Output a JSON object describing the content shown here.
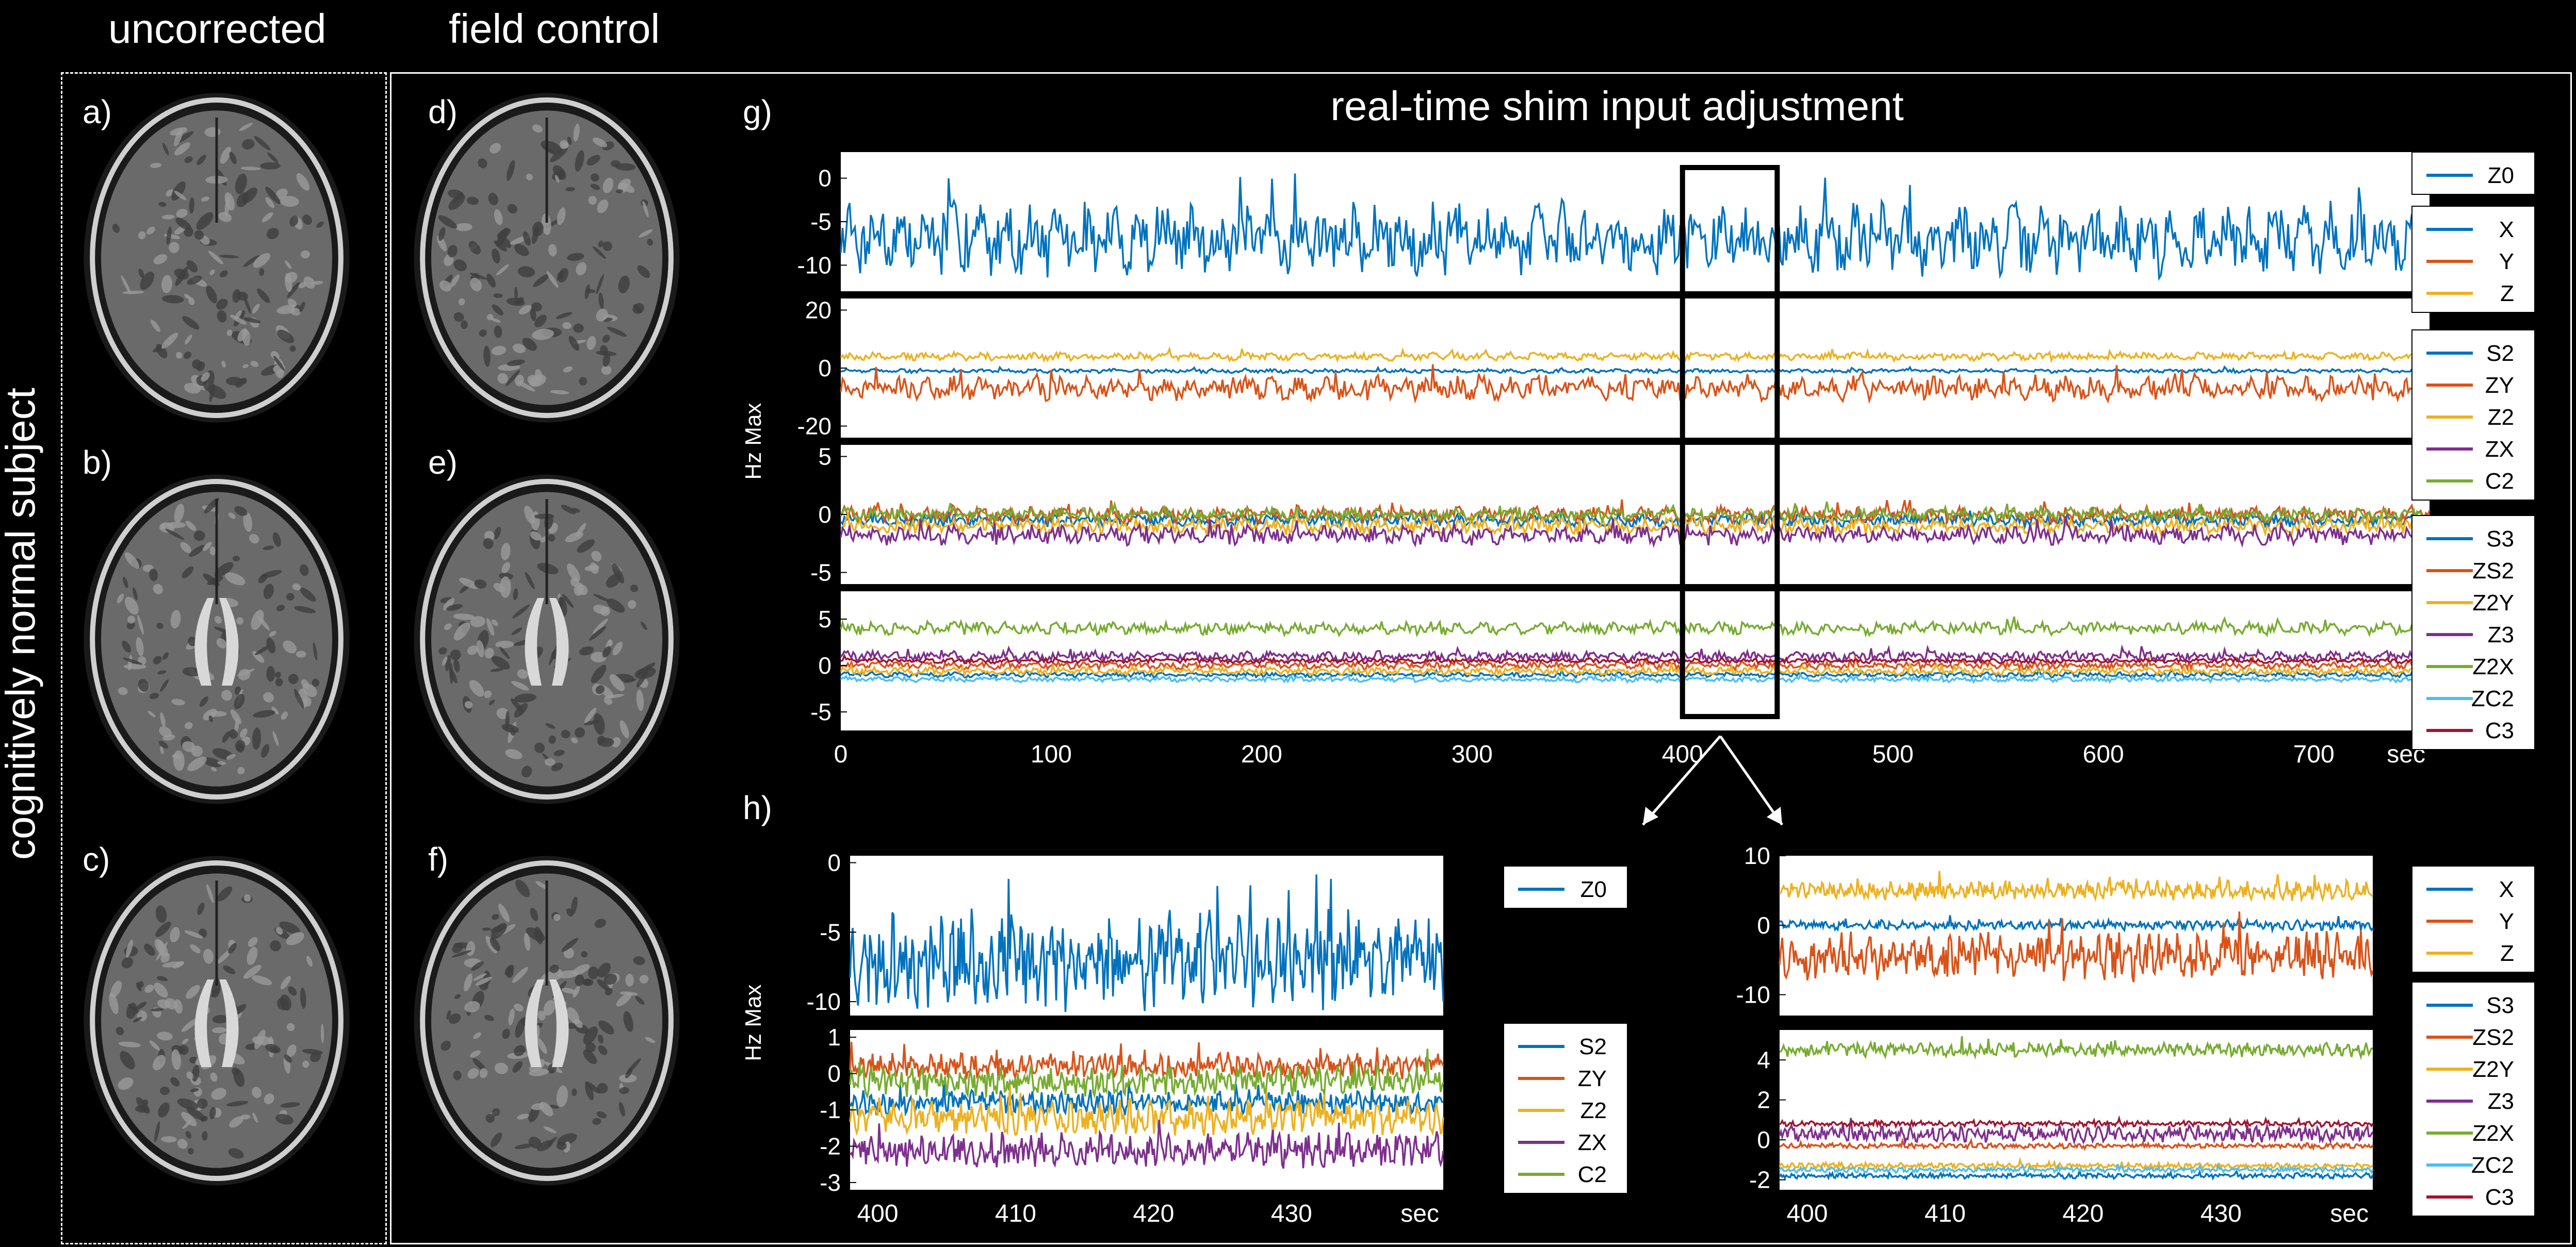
{
  "headers": {
    "uncorrected": "uncorrected",
    "field_control": "field control",
    "side_label": "cognitively normal subject"
  },
  "panels": {
    "a": "a)",
    "b": "b)",
    "c": "c)",
    "d": "d)",
    "e": "e)",
    "f": "f)",
    "g": "g)",
    "h": "h)"
  },
  "colors": {
    "blue": "#0072BD",
    "orange": "#D95319",
    "yellow": "#EDB120",
    "purple": "#7E2F8E",
    "green": "#77AC30",
    "cyan": "#4DBEEE",
    "darkred": "#A2142F"
  },
  "chart_data": [
    {
      "id": "g",
      "type": "line",
      "title": "real-time shim input adjustment",
      "ylabel": "Hz Max",
      "xunit": "sec",
      "xlim": [
        0,
        755
      ],
      "xticks": [
        "0",
        "100",
        "200",
        "300",
        "400",
        "500",
        "600",
        "700"
      ],
      "highlight_window": [
        400,
        445
      ],
      "subplots": [
        {
          "ylim": [
            -13,
            3
          ],
          "yticks": [
            "0",
            "-5",
            "-10"
          ],
          "ytick_values": [
            0,
            -5,
            -10
          ],
          "series": [
            {
              "name": "Z0",
              "mean": -7,
              "amp": 3,
              "color": "#0072BD"
            }
          ]
        },
        {
          "ylim": [
            -24,
            24
          ],
          "yticks": [
            "20",
            "0",
            "-20"
          ],
          "ytick_values": [
            20,
            0,
            -20
          ],
          "series": [
            {
              "name": "X",
              "mean": -1,
              "amp": 0.5,
              "color": "#0072BD"
            },
            {
              "name": "Y",
              "mean": -7,
              "amp": 3,
              "color": "#D95319"
            },
            {
              "name": "Z",
              "mean": 4,
              "amp": 1,
              "color": "#EDB120"
            }
          ]
        },
        {
          "ylim": [
            -6,
            6
          ],
          "yticks": [
            "5",
            "0",
            "-5"
          ],
          "ytick_values": [
            5,
            0,
            -5
          ],
          "series": [
            {
              "name": "S2",
              "mean": -0.5,
              "amp": 0.4,
              "color": "#0072BD"
            },
            {
              "name": "ZY",
              "mean": 0,
              "amp": 0.5,
              "color": "#D95319"
            },
            {
              "name": "Z2",
              "mean": -1,
              "amp": 0.5,
              "color": "#EDB120"
            },
            {
              "name": "ZX",
              "mean": -1.8,
              "amp": 0.6,
              "color": "#7E2F8E"
            },
            {
              "name": "C2",
              "mean": 0,
              "amp": 0.4,
              "color": "#77AC30"
            }
          ]
        },
        {
          "ylim": [
            -7,
            8
          ],
          "yticks": [
            "5",
            "0",
            "-5"
          ],
          "ytick_values": [
            5,
            0,
            -5
          ],
          "series": [
            {
              "name": "S3",
              "mean": -1,
              "amp": 0.2,
              "color": "#0072BD"
            },
            {
              "name": "ZS2",
              "mean": 0,
              "amp": 0.3,
              "color": "#D95319"
            },
            {
              "name": "Z2Y",
              "mean": -0.6,
              "amp": 0.3,
              "color": "#EDB120"
            },
            {
              "name": "Z3",
              "mean": 1,
              "amp": 0.4,
              "color": "#7E2F8E"
            },
            {
              "name": "Z2X",
              "mean": 4,
              "amp": 0.5,
              "color": "#77AC30"
            },
            {
              "name": "ZC2",
              "mean": -1.5,
              "amp": 0.2,
              "color": "#4DBEEE"
            },
            {
              "name": "C3",
              "mean": 0.5,
              "amp": 0.2,
              "color": "#A2142F"
            }
          ]
        }
      ],
      "legends": [
        [
          "Z0"
        ],
        [
          "X",
          "Y",
          "Z"
        ],
        [
          "S2",
          "ZY",
          "Z2",
          "ZX",
          "C2"
        ],
        [
          "S3",
          "ZS2",
          "Z2Y",
          "Z3",
          "Z2X",
          "ZC2",
          "C3"
        ]
      ]
    },
    {
      "id": "h_left",
      "type": "line",
      "ylabel": "Hz Max",
      "xunit": "sec",
      "xlim": [
        398,
        441
      ],
      "xticks": [
        "400",
        "410",
        "420",
        "430"
      ],
      "subplots": [
        {
          "ylim": [
            -11,
            0.5
          ],
          "yticks": [
            "0",
            "-5",
            "-10"
          ],
          "ytick_values": [
            0,
            -5,
            -10
          ],
          "series": [
            {
              "name": "Z0",
              "mean": -7,
              "amp": 2.5,
              "color": "#0072BD"
            }
          ]
        },
        {
          "ylim": [
            -3.2,
            1.2
          ],
          "yticks": [
            "1",
            "0",
            "-1",
            "-2",
            "-3"
          ],
          "ytick_values": [
            1,
            0,
            -1,
            -2,
            -3
          ],
          "series": [
            {
              "name": "S2",
              "mean": -0.8,
              "amp": 0.25,
              "color": "#0072BD"
            },
            {
              "name": "ZY",
              "mean": 0.2,
              "amp": 0.25,
              "color": "#D95319"
            },
            {
              "name": "Z2",
              "mean": -1.2,
              "amp": 0.35,
              "color": "#EDB120"
            },
            {
              "name": "ZX",
              "mean": -2.1,
              "amp": 0.35,
              "color": "#7E2F8E"
            },
            {
              "name": "C2",
              "mean": -0.2,
              "amp": 0.3,
              "color": "#77AC30"
            }
          ]
        }
      ],
      "legends": [
        [
          "Z0"
        ],
        [
          "S2",
          "ZY",
          "Z2",
          "ZX",
          "C2"
        ]
      ]
    },
    {
      "id": "h_right",
      "type": "line",
      "xunit": "sec",
      "xlim": [
        398,
        441
      ],
      "xticks": [
        "400",
        "410",
        "420",
        "430"
      ],
      "subplots": [
        {
          "ylim": [
            -13,
            10
          ],
          "yticks": [
            "10",
            "0",
            "-10"
          ],
          "ytick_values": [
            10,
            0,
            -10
          ],
          "series": [
            {
              "name": "X",
              "mean": 0,
              "amp": 0.5,
              "color": "#0072BD"
            },
            {
              "name": "Y",
              "mean": -4.5,
              "amp": 2.5,
              "color": "#D95319"
            },
            {
              "name": "Z",
              "mean": 5,
              "amp": 1,
              "color": "#EDB120"
            }
          ]
        },
        {
          "ylim": [
            -2.5,
            5.5
          ],
          "yticks": [
            "4",
            "2",
            "0",
            "-2"
          ],
          "ytick_values": [
            4,
            2,
            0,
            -2
          ],
          "series": [
            {
              "name": "S3",
              "mean": -1.8,
              "amp": 0.1,
              "color": "#0072BD"
            },
            {
              "name": "ZS2",
              "mean": -0.3,
              "amp": 0.1,
              "color": "#D95319"
            },
            {
              "name": "Z2Y",
              "mean": -1.3,
              "amp": 0.1,
              "color": "#EDB120"
            },
            {
              "name": "Z3",
              "mean": 0.3,
              "amp": 0.3,
              "color": "#7E2F8E"
            },
            {
              "name": "Z2X",
              "mean": 4.5,
              "amp": 0.25,
              "color": "#77AC30"
            },
            {
              "name": "ZC2",
              "mean": -1.5,
              "amp": 0.1,
              "color": "#4DBEEE"
            },
            {
              "name": "C3",
              "mean": 0.8,
              "amp": 0.1,
              "color": "#A2142F"
            }
          ]
        }
      ],
      "legends": [
        [
          "X",
          "Y",
          "Z"
        ],
        [
          "S3",
          "ZS2",
          "Z2Y",
          "Z3",
          "Z2X",
          "ZC2",
          "C3"
        ]
      ]
    }
  ]
}
